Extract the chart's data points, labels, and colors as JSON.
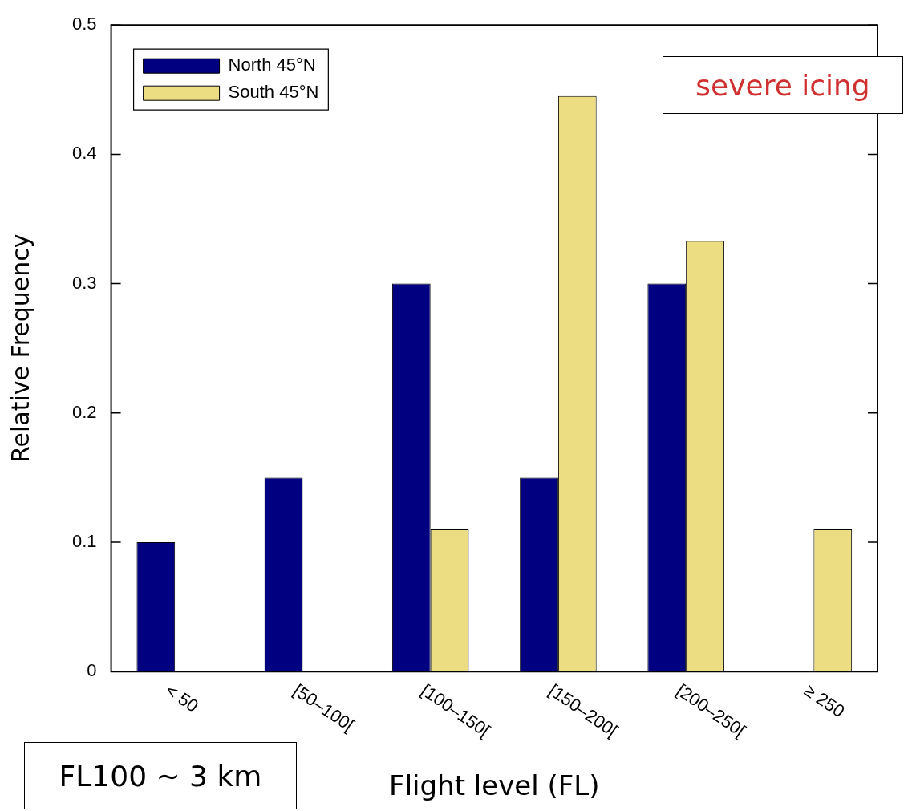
{
  "chart_data": {
    "type": "bar",
    "xlabel": "Flight level (FL)",
    "ylabel": "Relative Frequency",
    "categories": [
      "< 50",
      "[50–100[",
      "[100–150[",
      "[150–200[",
      "[200–250[",
      "≥ 250"
    ],
    "series": [
      {
        "name": "North 45°N",
        "color": "#000080",
        "values": [
          0.1,
          0.15,
          0.3,
          0.15,
          0.3,
          0
        ]
      },
      {
        "name": "South 45°N",
        "color": "#ecdc82",
        "values": [
          0,
          0,
          0.11,
          0.445,
          0.333,
          0.11
        ]
      }
    ],
    "ylim": [
      0,
      0.5
    ],
    "yticks": [
      0,
      0.1,
      0.2,
      0.3,
      0.4,
      0.5
    ],
    "grid": false,
    "legend": "top left",
    "annotations": [
      "severe icing",
      "FL100 ∼ 3 km"
    ]
  }
}
